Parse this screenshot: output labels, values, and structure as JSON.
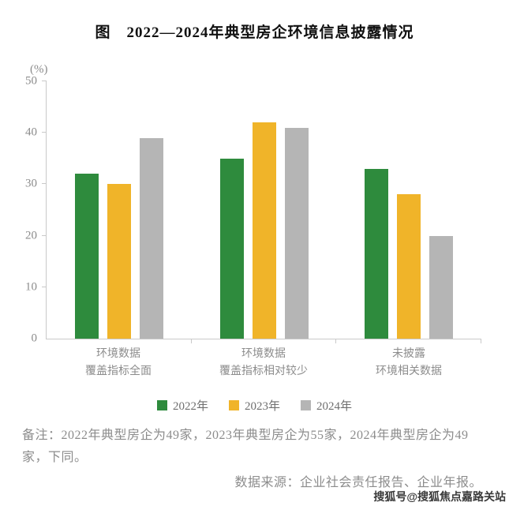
{
  "title": "图　2022—2024年典型房企环境信息披露情况",
  "chart_data": {
    "type": "bar",
    "title": "图 2022—2024年典型房企环境信息披露情况",
    "ylabel": "(%)",
    "ylim": [
      0,
      50
    ],
    "yticks": [
      0,
      10,
      20,
      30,
      40,
      50
    ],
    "grid": false,
    "legend_position": "bottom",
    "categories": [
      "环境数据\n覆盖指标全面",
      "环境数据\n覆盖指标相对较少",
      "未披露\n环境相关数据"
    ],
    "series": [
      {
        "name": "2022年",
        "color": "#2e8b3d",
        "values": [
          32,
          35,
          33
        ]
      },
      {
        "name": "2023年",
        "color": "#f0b429",
        "values": [
          30,
          42,
          28
        ]
      },
      {
        "name": "2024年",
        "color": "#b5b5b5",
        "values": [
          39,
          41,
          20
        ]
      }
    ]
  },
  "unit_label": "(%)",
  "notes": "备注：2022年典型房企为49家，2023年典型房企为55家，2024年典型房企为49家，下同。",
  "source": "数据来源：企业社会责任报告、企业年报。",
  "watermark": "搜狐号@搜狐焦点嘉路关站",
  "colors": {
    "axis": "#c9c9c9",
    "tick_text": "#8c8c8c",
    "title_text": "#111111"
  }
}
